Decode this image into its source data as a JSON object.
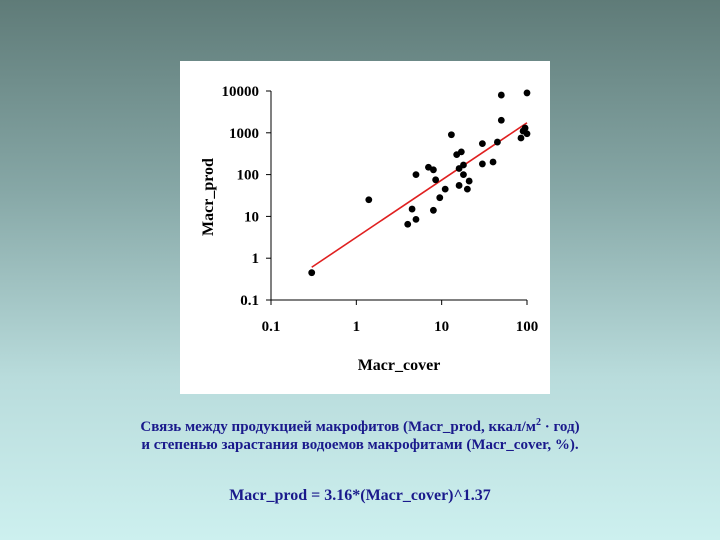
{
  "chart_data": {
    "type": "scatter",
    "xlabel": "Macr_cover",
    "ylabel": "Macr_prod",
    "xscale": "log",
    "yscale": "log",
    "xlim": [
      0.1,
      100
    ],
    "ylim": [
      0.1,
      10000
    ],
    "x_ticks": [
      "0.1",
      "1",
      "10",
      "100"
    ],
    "y_ticks": [
      "0.1",
      "1",
      "10",
      "100",
      "1000",
      "10000"
    ],
    "grid": false,
    "legend": "none",
    "point_color": "#000000",
    "fit_color": "#e02020",
    "points": [
      {
        "x": 0.3,
        "y": 0.45
      },
      {
        "x": 1.4,
        "y": 25
      },
      {
        "x": 4,
        "y": 6.5
      },
      {
        "x": 4.5,
        "y": 15
      },
      {
        "x": 5,
        "y": 8.5
      },
      {
        "x": 5,
        "y": 100
      },
      {
        "x": 7,
        "y": 150
      },
      {
        "x": 8,
        "y": 130
      },
      {
        "x": 8,
        "y": 14
      },
      {
        "x": 8.5,
        "y": 75
      },
      {
        "x": 9.5,
        "y": 28
      },
      {
        "x": 11,
        "y": 45
      },
      {
        "x": 13,
        "y": 900
      },
      {
        "x": 15,
        "y": 300
      },
      {
        "x": 16,
        "y": 140
      },
      {
        "x": 16,
        "y": 55
      },
      {
        "x": 17,
        "y": 350
      },
      {
        "x": 18,
        "y": 170
      },
      {
        "x": 18,
        "y": 100
      },
      {
        "x": 20,
        "y": 45
      },
      {
        "x": 21,
        "y": 70
      },
      {
        "x": 30,
        "y": 550
      },
      {
        "x": 30,
        "y": 180
      },
      {
        "x": 40,
        "y": 200
      },
      {
        "x": 45,
        "y": 600
      },
      {
        "x": 50,
        "y": 8000
      },
      {
        "x": 50,
        "y": 2000
      },
      {
        "x": 85,
        "y": 750
      },
      {
        "x": 90,
        "y": 1100
      },
      {
        "x": 95,
        "y": 1300
      },
      {
        "x": 100,
        "y": 9000
      },
      {
        "x": 100,
        "y": 950
      }
    ],
    "fit": {
      "formula": "y = 3.16*x^1.37",
      "coefficient": 3.16,
      "exponent": 1.37,
      "x_range": [
        0.3,
        100
      ]
    }
  },
  "caption": {
    "line1_pre": "Связь между продукцией макрофитов (Macr_prod, ккал/м",
    "line1_sup": "2",
    "line1_post": " · год)",
    "line2": "и степенью зарастания водоемов макрофитами (Macr_cover, %).",
    "formula": "Macr_prod = 3.16*(Macr_cover)^1.37"
  }
}
